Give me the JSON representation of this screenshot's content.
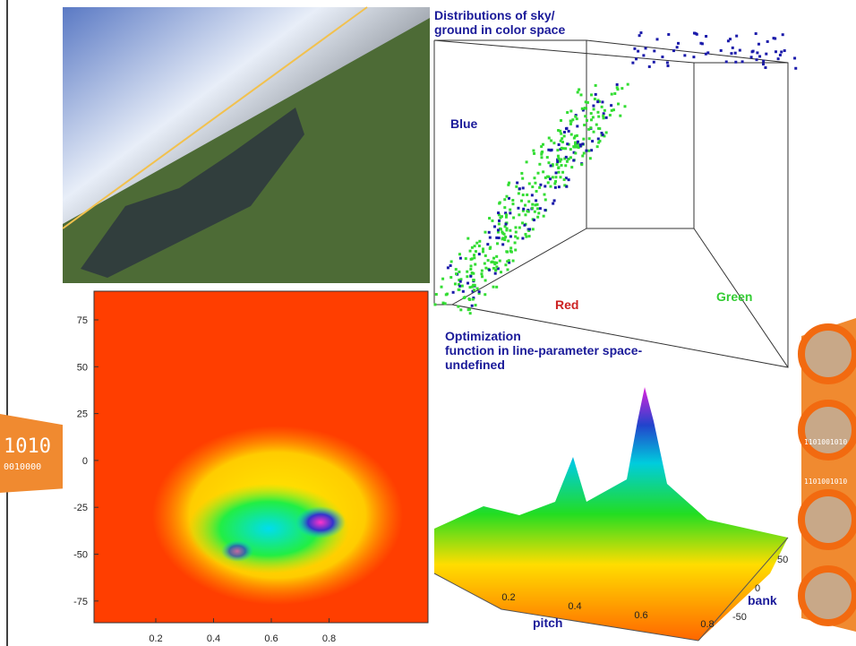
{
  "scatter_panel": {
    "title": "Distributions of sky/ ground in color space",
    "axis_labels": {
      "blue": "Blue",
      "red": "Red",
      "green": "Green"
    }
  },
  "surface_panel": {
    "title": "Optimization function in line-parameter space",
    "x_label": "pitch",
    "y_label": "bank",
    "x_ticks": [
      "0.2",
      "0.4",
      "0.6",
      "0.8"
    ],
    "y_ticks": [
      "50",
      "0",
      "-50"
    ]
  },
  "heatmap_panel": {
    "y_ticks": [
      "75",
      "50",
      "25",
      "0",
      "-25",
      "-50",
      "-75"
    ],
    "x_ticks": [
      "0.2",
      "0.4",
      "0.6",
      "0.8"
    ]
  },
  "decoration": {
    "left_binary": [
      "1010",
      "0010000"
    ],
    "right_binary": [
      "1101001010",
      "1101001010"
    ]
  }
}
